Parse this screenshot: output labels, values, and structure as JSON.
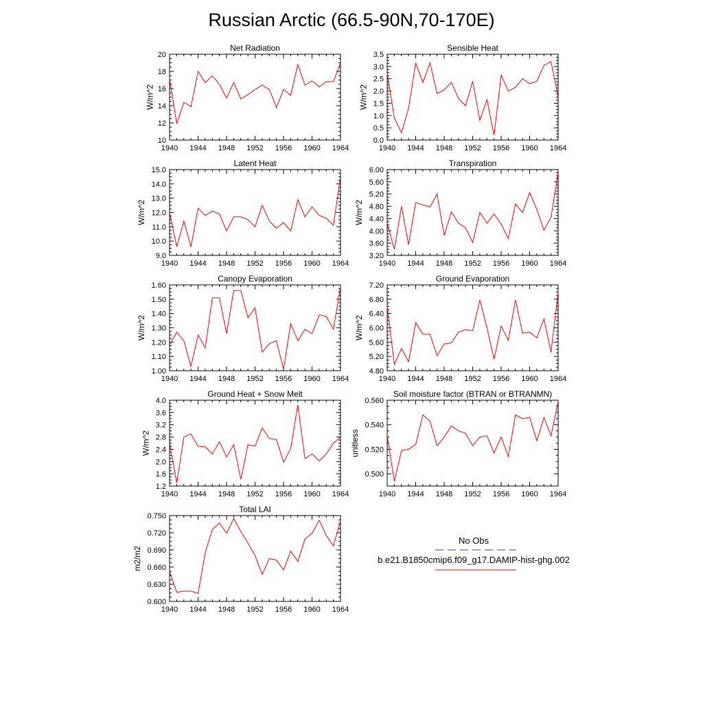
{
  "title": "Russian Arctic (66.5-90N,70-170E)",
  "x_ticks": [
    "1940",
    "1944",
    "1948",
    "1952",
    "1956",
    "1960",
    "1964"
  ],
  "legend": {
    "obs_label": "No Obs",
    "model_label": "b.e21.B1850cmip6.f09_g17.DAMIP-hist-ghg.002",
    "obs_color": "#3b3bb3",
    "model_color": "#ff0000"
  },
  "chart_data": [
    {
      "type": "line",
      "title": "Net Radiation",
      "ylabel": "W/m^2",
      "xlim": [
        1940,
        1964
      ],
      "ylim": [
        10,
        20
      ],
      "y_ticks": [
        "10",
        "12",
        "14",
        "16",
        "18",
        "20"
      ],
      "series": [
        {
          "color": "#ff0000",
          "x": [
            1940,
            1941,
            1942,
            1943,
            1944,
            1945,
            1946,
            1947,
            1948,
            1949,
            1950,
            1951,
            1952,
            1953,
            1954,
            1955,
            1956,
            1957,
            1958,
            1959,
            1960,
            1961,
            1962,
            1963,
            1964
          ],
          "values": [
            17.1,
            11.9,
            14.4,
            13.9,
            18.0,
            16.7,
            17.5,
            16.5,
            14.9,
            16.7,
            14.8,
            15.3,
            15.9,
            16.4,
            15.9,
            13.8,
            15.9,
            15.2,
            18.8,
            16.4,
            16.9,
            16.2,
            16.8,
            16.8,
            19.0
          ]
        }
      ]
    },
    {
      "type": "line",
      "title": "Sensible Heat",
      "ylabel": "W/m^2",
      "xlim": [
        1940,
        1964
      ],
      "ylim": [
        0.0,
        3.5
      ],
      "y_ticks": [
        "0.0",
        "0.5",
        "1.0",
        "1.5",
        "2.0",
        "2.5",
        "3.0",
        "3.5"
      ],
      "series": [
        {
          "color": "#ff0000",
          "x": [
            1940,
            1941,
            1942,
            1943,
            1944,
            1945,
            1946,
            1947,
            1948,
            1949,
            1950,
            1951,
            1952,
            1953,
            1954,
            1955,
            1956,
            1957,
            1958,
            1959,
            1960,
            1961,
            1962,
            1963,
            1964
          ],
          "values": [
            2.7,
            0.9,
            0.3,
            1.3,
            3.15,
            2.35,
            3.15,
            1.9,
            2.05,
            2.35,
            1.7,
            1.4,
            2.4,
            0.8,
            1.65,
            0.2,
            2.65,
            2.0,
            2.15,
            2.5,
            2.3,
            2.4,
            3.05,
            3.2,
            1.75
          ]
        }
      ]
    },
    {
      "type": "line",
      "title": "Latent Heat",
      "ylabel": "W/m^2",
      "xlim": [
        1940,
        1964
      ],
      "ylim": [
        9.0,
        15.0
      ],
      "y_ticks": [
        "9.0",
        "10.0",
        "11.0",
        "12.0",
        "13.0",
        "14.0",
        "15.0"
      ],
      "series": [
        {
          "color": "#ff0000",
          "x": [
            1940,
            1941,
            1942,
            1943,
            1944,
            1945,
            1946,
            1947,
            1948,
            1949,
            1950,
            1951,
            1952,
            1953,
            1954,
            1955,
            1956,
            1957,
            1958,
            1959,
            1960,
            1961,
            1962,
            1963,
            1964
          ],
          "values": [
            12.0,
            9.6,
            11.4,
            9.6,
            12.3,
            11.8,
            12.1,
            11.9,
            10.7,
            11.7,
            11.7,
            11.5,
            11.0,
            12.5,
            11.4,
            10.9,
            11.3,
            10.7,
            12.9,
            11.7,
            12.4,
            11.8,
            11.6,
            11.1,
            14.5
          ]
        }
      ]
    },
    {
      "type": "line",
      "title": "Transpiration",
      "ylabel": "W/m^2",
      "xlim": [
        1940,
        1964
      ],
      "ylim": [
        3.2,
        6.0
      ],
      "y_ticks": [
        "3.20",
        "3.60",
        "4.00",
        "4.40",
        "4.80",
        "5.20",
        "5.60",
        "6.00"
      ],
      "series": [
        {
          "color": "#ff0000",
          "x": [
            1940,
            1941,
            1942,
            1943,
            1944,
            1945,
            1946,
            1947,
            1948,
            1949,
            1950,
            1951,
            1952,
            1953,
            1954,
            1955,
            1956,
            1957,
            1958,
            1959,
            1960,
            1961,
            1962,
            1963,
            1964
          ],
          "values": [
            4.25,
            3.4,
            4.8,
            3.55,
            4.92,
            4.85,
            4.78,
            5.2,
            3.85,
            4.62,
            4.25,
            4.1,
            3.62,
            4.6,
            4.25,
            4.55,
            4.22,
            3.75,
            4.88,
            4.6,
            5.25,
            4.7,
            4.02,
            4.45,
            5.9
          ]
        }
      ]
    },
    {
      "type": "line",
      "title": "Canopy Evaporation",
      "ylabel": "W/m^2",
      "xlim": [
        1940,
        1964
      ],
      "ylim": [
        1.0,
        1.6
      ],
      "y_ticks": [
        "1.00",
        "1.10",
        "1.20",
        "1.30",
        "1.40",
        "1.50",
        "1.60"
      ],
      "series": [
        {
          "color": "#ff0000",
          "x": [
            1940,
            1941,
            1942,
            1943,
            1944,
            1945,
            1946,
            1947,
            1948,
            1949,
            1950,
            1951,
            1952,
            1953,
            1954,
            1955,
            1956,
            1957,
            1958,
            1959,
            1960,
            1961,
            1962,
            1963,
            1964
          ],
          "values": [
            1.18,
            1.27,
            1.21,
            1.03,
            1.25,
            1.16,
            1.51,
            1.51,
            1.26,
            1.56,
            1.56,
            1.37,
            1.44,
            1.13,
            1.19,
            1.21,
            1.01,
            1.33,
            1.21,
            1.29,
            1.26,
            1.39,
            1.38,
            1.29,
            1.59
          ]
        }
      ]
    },
    {
      "type": "line",
      "title": "Ground Evaporation",
      "ylabel": "W/m^2",
      "xlim": [
        1940,
        1964
      ],
      "ylim": [
        4.8,
        7.2
      ],
      "y_ticks": [
        "4.80",
        "5.20",
        "5.60",
        "6.00",
        "6.40",
        "6.80",
        "7.20"
      ],
      "series": [
        {
          "color": "#ff0000",
          "x": [
            1940,
            1941,
            1942,
            1943,
            1944,
            1945,
            1946,
            1947,
            1948,
            1949,
            1950,
            1951,
            1952,
            1953,
            1954,
            1955,
            1956,
            1957,
            1958,
            1959,
            1960,
            1961,
            1962,
            1963,
            1964
          ],
          "values": [
            6.6,
            4.98,
            5.42,
            5.05,
            6.15,
            5.82,
            5.82,
            5.22,
            5.55,
            5.58,
            5.88,
            5.95,
            5.92,
            6.78,
            6.0,
            5.12,
            6.05,
            5.65,
            6.78,
            5.85,
            5.88,
            5.72,
            6.25,
            5.32,
            7.0
          ]
        }
      ]
    },
    {
      "type": "line",
      "title": "Ground Heat + Snow Melt",
      "ylabel": "W/m^2",
      "xlim": [
        1940,
        1964
      ],
      "ylim": [
        1.2,
        4.0
      ],
      "y_ticks": [
        "1.2",
        "1.6",
        "2.0",
        "2.4",
        "2.8",
        "3.2",
        "3.6",
        "4.0"
      ],
      "series": [
        {
          "color": "#ff0000",
          "x": [
            1940,
            1941,
            1942,
            1943,
            1944,
            1945,
            1946,
            1947,
            1948,
            1949,
            1950,
            1951,
            1952,
            1953,
            1954,
            1955,
            1956,
            1957,
            1958,
            1959,
            1960,
            1961,
            1962,
            1963,
            1964
          ],
          "values": [
            2.6,
            1.3,
            2.8,
            2.9,
            2.5,
            2.48,
            2.25,
            2.65,
            2.15,
            2.55,
            1.42,
            2.55,
            2.5,
            3.1,
            2.75,
            2.72,
            1.98,
            2.42,
            3.85,
            2.1,
            2.25,
            2.02,
            2.25,
            2.6,
            2.8
          ]
        }
      ]
    },
    {
      "type": "line",
      "title": "Soil moisture factor (BTRAN or BTRANMN)",
      "ylabel": "unitless",
      "xlim": [
        1940,
        1964
      ],
      "ylim": [
        0.49,
        0.56
      ],
      "y_ticks": [
        "0.500",
        "0.520",
        "0.540",
        "0.560"
      ],
      "series": [
        {
          "color": "#ff0000",
          "x": [
            1940,
            1941,
            1942,
            1943,
            1944,
            1945,
            1946,
            1947,
            1948,
            1949,
            1950,
            1951,
            1952,
            1953,
            1954,
            1955,
            1956,
            1957,
            1958,
            1959,
            1960,
            1961,
            1962,
            1963,
            1964
          ],
          "values": [
            0.531,
            0.494,
            0.519,
            0.52,
            0.524,
            0.548,
            0.543,
            0.523,
            0.53,
            0.539,
            0.535,
            0.533,
            0.523,
            0.53,
            0.531,
            0.517,
            0.53,
            0.514,
            0.548,
            0.545,
            0.546,
            0.527,
            0.546,
            0.531,
            0.559
          ]
        }
      ]
    },
    {
      "type": "line",
      "title": "Total LAI",
      "ylabel": "m2/m2",
      "xlim": [
        1940,
        1964
      ],
      "ylim": [
        0.6,
        0.75
      ],
      "y_ticks": [
        "0.600",
        "0.630",
        "0.660",
        "0.690",
        "0.720",
        "0.750"
      ],
      "series": [
        {
          "color": "#ff0000",
          "x": [
            1940,
            1941,
            1942,
            1943,
            1944,
            1945,
            1946,
            1947,
            1948,
            1949,
            1950,
            1951,
            1952,
            1953,
            1954,
            1955,
            1956,
            1957,
            1958,
            1959,
            1960,
            1961,
            1962,
            1963,
            1964
          ],
          "values": [
            0.652,
            0.616,
            0.618,
            0.618,
            0.614,
            0.685,
            0.726,
            0.737,
            0.719,
            0.745,
            0.722,
            0.702,
            0.68,
            0.647,
            0.675,
            0.672,
            0.655,
            0.688,
            0.67,
            0.709,
            0.719,
            0.742,
            0.715,
            0.697,
            0.741
          ]
        }
      ]
    }
  ]
}
